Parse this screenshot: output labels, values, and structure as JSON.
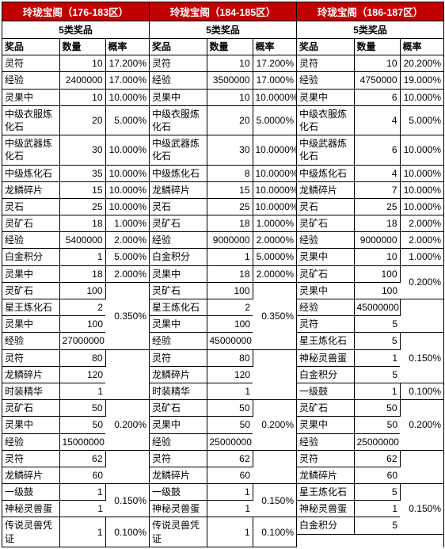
{
  "columns": [
    {
      "title": "玲珑宝阁（176-183区）",
      "subtitle": "5类奖品",
      "headers": [
        "奖品",
        "数量",
        "概率"
      ],
      "rows": [
        [
          "灵符",
          "10",
          "17.200%"
        ],
        [
          "经验",
          "2400000",
          "17.000%"
        ],
        [
          "灵果中",
          "10",
          "10.000%"
        ],
        [
          "中级衣服炼化石",
          "20",
          "5.000%"
        ],
        [
          "中级武器炼化石",
          "30",
          "10.000%"
        ],
        [
          "中级炼化石",
          "35",
          "10.000%"
        ],
        [
          "龙鳞碎片",
          "15",
          "10.000%"
        ],
        [
          "灵石",
          "25",
          "10.000%"
        ],
        [
          "灵矿石",
          "18",
          "1.000%"
        ],
        [
          "经验",
          "5400000",
          "2.000%"
        ],
        [
          "白金积分",
          "1",
          "5.000%"
        ],
        [
          "灵果中",
          "18",
          "2.000%"
        ],
        [
          "灵矿石",
          "100",
          ""
        ],
        [
          "星王炼化石",
          "2",
          ""
        ],
        [
          "灵果中",
          "100",
          ""
        ],
        [
          "经验",
          "27000000",
          "0.350%"
        ],
        [
          "灵符",
          "80",
          ""
        ],
        [
          "龙鳞碎片",
          "120",
          ""
        ],
        [
          "时装精华",
          "1",
          ""
        ],
        [
          "灵矿石",
          "50",
          ""
        ],
        [
          "灵果中",
          "50",
          ""
        ],
        [
          "经验",
          "15000000",
          "0.200%"
        ],
        [
          "灵符",
          "62",
          ""
        ],
        [
          "龙鳞碎片",
          "60",
          ""
        ],
        [
          "一级鼓",
          "1",
          "0.150%"
        ],
        [
          "神秘灵兽蛋",
          "1",
          ""
        ],
        [
          "传说灵兽凭证",
          "1",
          "0.100%"
        ]
      ],
      "merges": {
        "12": 4,
        "16": 3,
        "19": 3,
        "22": 2,
        "24": 2
      }
    },
    {
      "title": "玲珑宝阁（184-185区）",
      "subtitle": "5类奖品",
      "headers": [
        "奖品",
        "数量",
        "概率"
      ],
      "rows": [
        [
          "灵符",
          "10",
          "17.200%"
        ],
        [
          "经验",
          "3500000",
          "17.000%"
        ],
        [
          "灵果中",
          "10",
          "10.0000%"
        ],
        [
          "中级衣服炼化石",
          "20",
          "5.0000%"
        ],
        [
          "中级武器炼化石",
          "30",
          "10.0000%"
        ],
        [
          "中级炼化石",
          "8",
          "10.0000%"
        ],
        [
          "龙鳞碎片",
          "15",
          "10.0000%"
        ],
        [
          "灵石",
          "25",
          "10.0000%"
        ],
        [
          "灵矿石",
          "18",
          "1.0000%"
        ],
        [
          "经验",
          "9000000",
          "2.0000%"
        ],
        [
          "白金积分",
          "1",
          "5.0000%"
        ],
        [
          "灵果中",
          "18",
          "2.0000%"
        ],
        [
          "灵矿石",
          "100",
          ""
        ],
        [
          "星王炼化石",
          "2",
          ""
        ],
        [
          "灵果中",
          "100",
          ""
        ],
        [
          "经验",
          "45000000",
          "0.350%"
        ],
        [
          "灵符",
          "80",
          ""
        ],
        [
          "龙鳞碎片",
          "120",
          ""
        ],
        [
          "时装精华",
          "1",
          ""
        ],
        [
          "灵矿石",
          "50",
          ""
        ],
        [
          "灵果中",
          "50",
          ""
        ],
        [
          "经验",
          "25000000",
          "0.200%"
        ],
        [
          "灵符",
          "62",
          ""
        ],
        [
          "龙鳞碎片",
          "60",
          ""
        ],
        [
          "一级鼓",
          "1",
          "0.150%"
        ],
        [
          "神秘灵兽蛋",
          "1",
          ""
        ],
        [
          "传说灵兽凭证",
          "1",
          "0.100%"
        ]
      ],
      "merges": {
        "12": 4,
        "16": 3,
        "19": 3,
        "22": 2,
        "24": 2
      }
    },
    {
      "title": "玲珑宝阁（186-187区）",
      "subtitle": "5类奖品",
      "headers": [
        "奖品",
        "数量",
        "概率"
      ],
      "rows": [
        [
          "灵符",
          "10",
          "20.200%"
        ],
        [
          "经验",
          "4750000",
          "19.000%"
        ],
        [
          "灵果中",
          "6",
          "10.000%"
        ],
        [
          "中级衣服炼化石",
          "4",
          "5.000%"
        ],
        [
          "中级武器炼化石",
          "6",
          "10.000%"
        ],
        [
          "中级炼化石",
          "4",
          "10.000%"
        ],
        [
          "龙鳞碎片",
          "7",
          "10.000%"
        ],
        [
          "灵石",
          "25",
          "10.000%"
        ],
        [
          "灵矿石",
          "18",
          "2.000%"
        ],
        [
          "经验",
          "9000000",
          "2.000%"
        ],
        [
          "灵果中",
          "10",
          "1.000%"
        ],
        [
          "灵矿石",
          "100",
          ""
        ],
        [
          "灵果中",
          "100",
          "0.200%"
        ],
        [
          "经验",
          "45000000",
          ""
        ],
        [
          "灵符",
          "5",
          ""
        ],
        [
          "星王炼化石",
          "5",
          "0.150%"
        ],
        [
          "神秘灵兽蛋",
          "1",
          ""
        ],
        [
          "白金积分",
          "5",
          ""
        ],
        [
          "一级鼓",
          "1",
          "0.100%"
        ],
        [
          "灵矿石",
          "50",
          ""
        ],
        [
          "灵果中",
          "50",
          ""
        ],
        [
          "经验",
          "25000000",
          "0.200%"
        ],
        [
          "灵符",
          "62",
          ""
        ],
        [
          "龙鳞碎片",
          "60",
          ""
        ],
        [
          "星王炼化石",
          "5",
          ""
        ],
        [
          "神秘灵兽蛋",
          "1",
          "0.150%"
        ],
        [
          "白金积分",
          "5",
          ""
        ]
      ],
      "merges": {
        "11": 2,
        "13": 2,
        "15": 3,
        "19": 3,
        "22": 2,
        "24": 3
      }
    }
  ]
}
